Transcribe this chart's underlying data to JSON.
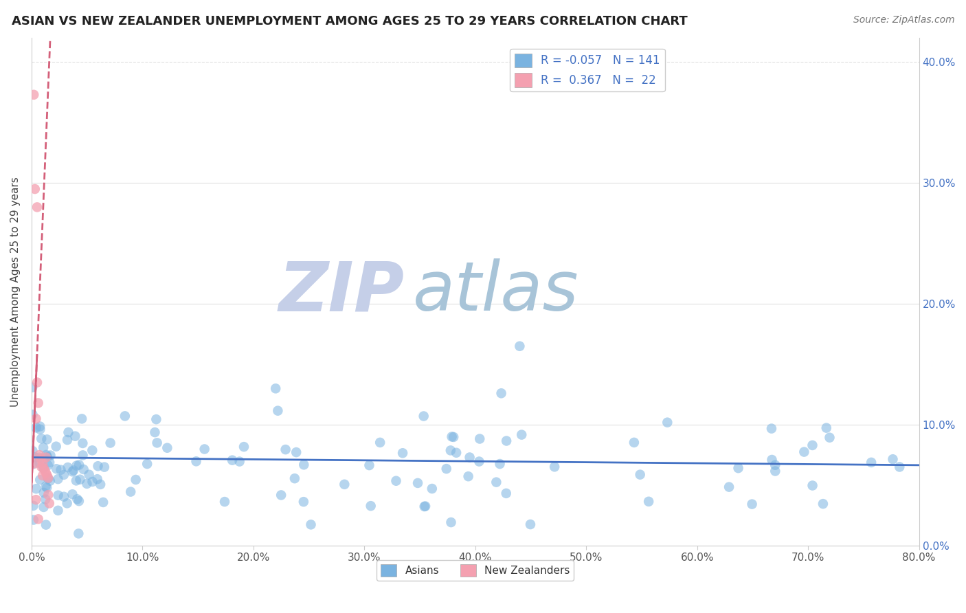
{
  "title": "ASIAN VS NEW ZEALANDER UNEMPLOYMENT AMONG AGES 25 TO 29 YEARS CORRELATION CHART",
  "source": "Source: ZipAtlas.com",
  "xlim": [
    0.0,
    0.8
  ],
  "ylim": [
    0.0,
    0.42
  ],
  "yticks": [
    0.0,
    0.1,
    0.2,
    0.3,
    0.4
  ],
  "xticks": [
    0.0,
    0.1,
    0.2,
    0.3,
    0.4,
    0.5,
    0.6,
    0.7,
    0.8
  ],
  "legend_r_asian": "-0.057",
  "legend_n_asian": "141",
  "legend_r_nz": "0.367",
  "legend_n_nz": "22",
  "asian_color": "#7ab3e0",
  "nz_color": "#f4a0b0",
  "trend_asian_color": "#4472c4",
  "trend_nz_color": "#d4607a",
  "watermark_zip": "ZIP",
  "watermark_atlas": "atlas",
  "watermark_color_zip": "#c5cfe8",
  "watermark_color_atlas": "#a8c4d8",
  "ylabel": "Unemployment Among Ages 25 to 29 years",
  "legend_text_color": "#4472c4",
  "grid_color": "#e0e0e0",
  "tick_color": "#555555"
}
